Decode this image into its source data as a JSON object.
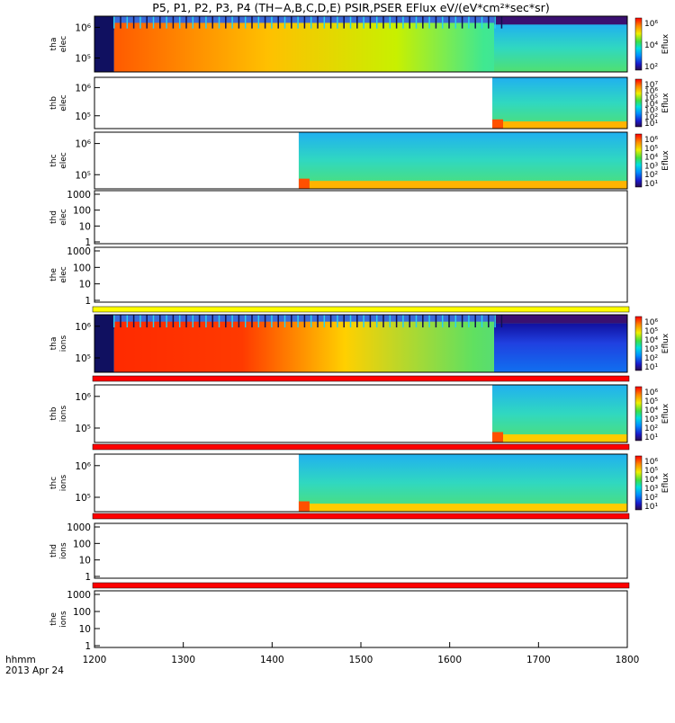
{
  "title": "P5, P1, P2, P3, P4 (TH−A,B,C,D,E) PSIR,PSER EFlux eV/(eV*cm²*sec*sr)",
  "footer": {
    "time_label": "hhmm",
    "date_label": "2013 Apr 24",
    "x_ticks": [
      "1200",
      "1300",
      "1400",
      "1500",
      "1600",
      "1700",
      "1800"
    ]
  },
  "chart_data": {
    "type": "heatmap",
    "x_unit": "hhmm",
    "xlim": [
      1200,
      1800
    ],
    "x_ticks": [
      1200,
      1300,
      1400,
      1500,
      1600,
      1700,
      1800
    ],
    "panels": [
      {
        "id": "tha-elec",
        "ylabel": [
          "tha",
          "elec"
        ],
        "y_ticks": [
          "10⁵",
          "10⁶"
        ],
        "data_start": 1200,
        "colorbar": [
          "10⁶",
          "10⁴",
          "10²"
        ],
        "colorbar_label": "Eflux"
      },
      {
        "id": "thb-elec",
        "ylabel": [
          "thb",
          "elec"
        ],
        "y_ticks": [
          "10⁵",
          "10⁶"
        ],
        "data_start": 1648,
        "colorbar": [
          "10⁷",
          "10⁶",
          "10⁵",
          "10⁴",
          "10³",
          "10²",
          "10¹"
        ],
        "colorbar_label": "Eflux"
      },
      {
        "id": "thc-elec",
        "ylabel": [
          "thc",
          "elec"
        ],
        "y_ticks": [
          "10⁵",
          "10⁶"
        ],
        "data_start": 1430,
        "colorbar": [
          "10⁶",
          "10⁵",
          "10⁴",
          "10³",
          "10²",
          "10¹"
        ],
        "colorbar_label": "Eflux"
      },
      {
        "id": "thd-elec",
        "ylabel": [
          "thd",
          "elec"
        ],
        "y_ticks": [
          "1",
          "10",
          "100",
          "1000"
        ],
        "data_start": null
      },
      {
        "id": "the-elec",
        "ylabel": [
          "the",
          "elec"
        ],
        "y_ticks": [
          "1",
          "10",
          "100",
          "1000"
        ],
        "data_start": null
      },
      {
        "id": "tha-ions",
        "ylabel": [
          "tha",
          "ions"
        ],
        "y_ticks": [
          "10⁵",
          "10⁶"
        ],
        "data_start": 1200,
        "colorbar": [
          "10⁶",
          "10⁵",
          "10⁴",
          "10³",
          "10²",
          "10¹"
        ],
        "colorbar_label": "Eflux"
      },
      {
        "id": "thb-ions",
        "ylabel": [
          "thb",
          "ions"
        ],
        "y_ticks": [
          "10⁵",
          "10⁶"
        ],
        "data_start": 1648,
        "colorbar": [
          "10⁶",
          "10⁵",
          "10⁴",
          "10³",
          "10²",
          "10¹"
        ],
        "colorbar_label": "Eflux"
      },
      {
        "id": "thc-ions",
        "ylabel": [
          "thc",
          "ions"
        ],
        "y_ticks": [
          "10⁵",
          "10⁶"
        ],
        "data_start": 1430,
        "colorbar": [
          "10⁶",
          "10⁵",
          "10⁴",
          "10³",
          "10²",
          "10¹"
        ],
        "colorbar_label": "Eflux"
      },
      {
        "id": "thd-ions",
        "ylabel": [
          "thd",
          "ions"
        ],
        "y_ticks": [
          "1",
          "10",
          "100",
          "1000"
        ],
        "data_start": null
      },
      {
        "id": "the-ions",
        "ylabel": [
          "the",
          "ions"
        ],
        "y_ticks": [
          "1",
          "10",
          "100",
          "1000"
        ],
        "data_start": null
      }
    ],
    "mode_bars": [
      {
        "color": "#ffff00"
      },
      {
        "color": "#ff0000"
      },
      {
        "color": "#ff0000"
      },
      {
        "color": "#ff0000"
      },
      {
        "color": "#ff0000"
      }
    ]
  }
}
